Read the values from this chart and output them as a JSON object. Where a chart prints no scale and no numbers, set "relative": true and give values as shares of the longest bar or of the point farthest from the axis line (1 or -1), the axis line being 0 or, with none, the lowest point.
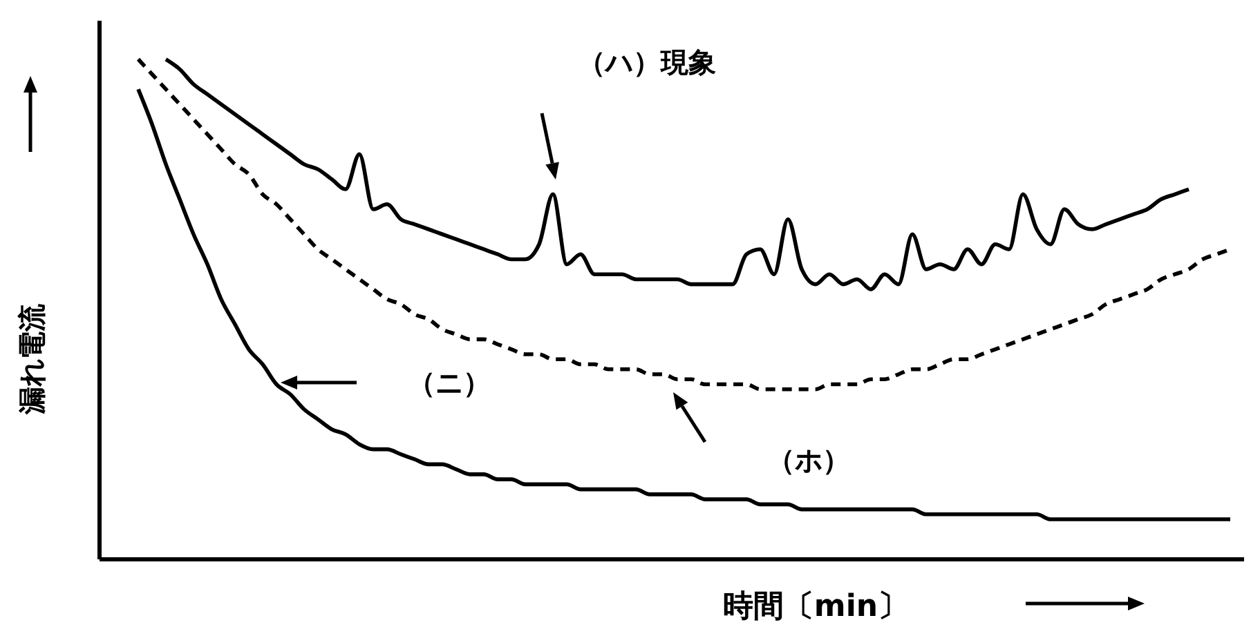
{
  "chart_data": {
    "type": "line",
    "relative": true,
    "xlabel": "時間〔min〕",
    "ylabel": "漏れ電流",
    "grid": false,
    "legend": false,
    "marker": "none",
    "annotations": [
      "（ハ）現象",
      "（ニ）",
      "（ホ）"
    ],
    "categories": [
      null,
      null,
      null,
      null,
      null,
      null,
      null,
      null,
      null,
      null,
      null,
      null,
      null,
      null,
      null,
      null,
      null,
      null,
      null,
      null,
      null,
      null,
      null,
      null,
      null,
      null,
      null,
      null,
      null,
      null,
      null,
      null,
      null,
      null,
      null,
      null,
      null,
      null,
      null,
      null,
      null,
      null,
      null,
      null,
      null,
      null,
      null,
      null,
      null,
      null,
      null,
      null,
      null,
      null,
      null,
      null,
      null,
      null,
      null,
      null,
      null,
      null,
      null,
      null,
      null,
      null,
      null,
      null,
      null,
      null,
      null,
      null,
      null,
      null,
      null,
      null,
      null,
      null,
      null,
      null
    ],
    "series": [
      {
        "color": "#000000",
        "line_style": "solid",
        "values": [
          null,
          null,
          1.0,
          0.98,
          0.95,
          0.93,
          0.91,
          0.89,
          0.87,
          0.85,
          0.83,
          0.81,
          0.79,
          0.78,
          0.76,
          0.74,
          0.81,
          0.7,
          0.71,
          0.68,
          0.67,
          0.66,
          0.65,
          0.64,
          0.63,
          0.62,
          0.61,
          0.6,
          0.6,
          0.63,
          0.73,
          0.59,
          0.61,
          0.57,
          0.57,
          0.57,
          0.56,
          0.56,
          0.56,
          0.56,
          0.55,
          0.55,
          0.55,
          0.55,
          0.61,
          0.62,
          0.57,
          0.68,
          0.58,
          0.55,
          0.57,
          0.55,
          0.56,
          0.54,
          0.57,
          0.55,
          0.65,
          0.58,
          0.59,
          0.58,
          0.62,
          0.59,
          0.63,
          0.62,
          0.73,
          0.66,
          0.63,
          0.7,
          0.67,
          0.66,
          0.67,
          0.68,
          0.69,
          0.7,
          0.72,
          0.73,
          0.74,
          null,
          null,
          null
        ]
      },
      {
        "color": "#000000",
        "line_style": "dashed",
        "values": [
          1.0,
          0.97,
          0.94,
          0.91,
          0.88,
          0.85,
          0.82,
          0.79,
          0.77,
          0.73,
          0.71,
          0.68,
          0.65,
          0.62,
          0.6,
          0.58,
          0.56,
          0.54,
          0.52,
          0.51,
          0.49,
          0.48,
          0.46,
          0.45,
          0.44,
          0.44,
          0.43,
          0.42,
          0.41,
          0.41,
          0.4,
          0.4,
          0.39,
          0.39,
          0.38,
          0.38,
          0.38,
          0.37,
          0.37,
          0.36,
          0.36,
          0.35,
          0.35,
          0.35,
          0.35,
          0.34,
          0.34,
          0.34,
          0.34,
          0.34,
          0.35,
          0.35,
          0.35,
          0.36,
          0.36,
          0.37,
          0.38,
          0.38,
          0.39,
          0.4,
          0.4,
          0.41,
          0.42,
          0.43,
          0.44,
          0.45,
          0.46,
          0.47,
          0.48,
          0.49,
          0.51,
          0.52,
          0.53,
          0.54,
          0.56,
          0.57,
          0.58,
          0.6,
          0.61,
          0.62
        ]
      },
      {
        "color": "#000000",
        "line_style": "solid",
        "values": [
          0.94,
          0.87,
          0.79,
          0.72,
          0.65,
          0.59,
          0.52,
          0.47,
          0.42,
          0.39,
          0.35,
          0.33,
          0.3,
          0.28,
          0.26,
          0.25,
          0.23,
          0.22,
          0.22,
          0.21,
          0.2,
          0.19,
          0.19,
          0.18,
          0.17,
          0.17,
          0.16,
          0.16,
          0.15,
          0.15,
          0.15,
          0.15,
          0.14,
          0.14,
          0.14,
          0.14,
          0.14,
          0.13,
          0.13,
          0.13,
          0.13,
          0.12,
          0.12,
          0.12,
          0.12,
          0.11,
          0.11,
          0.11,
          0.1,
          0.1,
          0.1,
          0.1,
          0.1,
          0.1,
          0.1,
          0.1,
          0.1,
          0.09,
          0.09,
          0.09,
          0.09,
          0.09,
          0.09,
          0.09,
          0.09,
          0.09,
          0.08,
          0.08,
          0.08,
          0.08,
          0.08,
          0.08,
          0.08,
          0.08,
          0.08,
          0.08,
          0.08,
          0.08,
          0.08,
          0.08
        ]
      }
    ]
  }
}
